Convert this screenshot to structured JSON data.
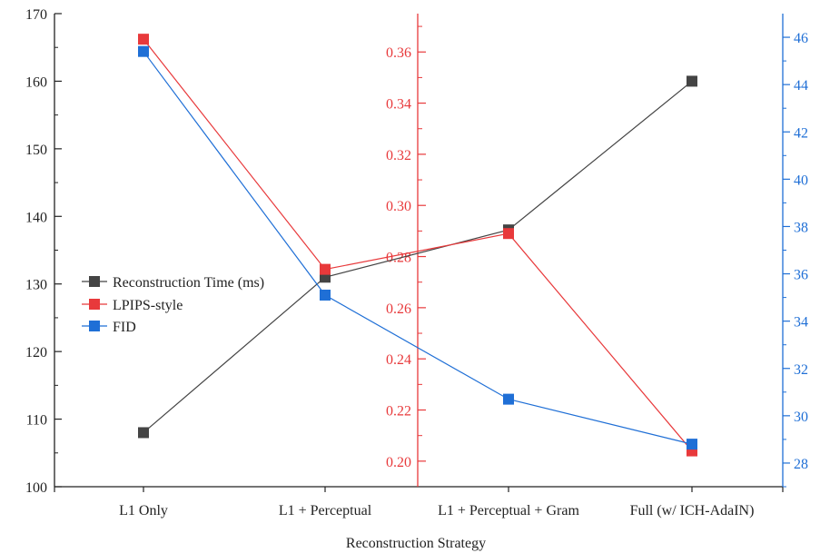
{
  "chart_data": {
    "type": "line",
    "xlabel": "Reconstruction Strategy",
    "categories": [
      "L1 Only",
      "L1 + Perceptual",
      "L1 + Perceptual + Gram",
      "Full (w/ ICH-AdaIN)"
    ],
    "axes": {
      "left": {
        "ylim": [
          100,
          170
        ],
        "ticks": [
          "100",
          "110",
          "120",
          "130",
          "140",
          "150",
          "160",
          "170"
        ]
      },
      "middle": {
        "ylim": [
          0.19,
          0.375
        ],
        "ticks": [
          "0.20",
          "0.22",
          "0.24",
          "0.26",
          "0.28",
          "0.30",
          "0.32",
          "0.34",
          "0.36"
        ],
        "color": "#e8393b"
      },
      "right": {
        "ylim": [
          27,
          47
        ],
        "ticks": [
          "28",
          "30",
          "32",
          "34",
          "36",
          "38",
          "40",
          "42",
          "44",
          "46"
        ],
        "color": "#1f6fd6"
      }
    },
    "series": [
      {
        "name": "Reconstruction Time (ms)",
        "axis": "left",
        "color": "#444444",
        "values": [
          108,
          131,
          138,
          160
        ]
      },
      {
        "name": "LPIPS-style",
        "axis": "middle",
        "color": "#e8393b",
        "values": [
          0.365,
          0.275,
          0.289,
          0.204
        ]
      },
      {
        "name": "FID",
        "axis": "right",
        "color": "#1f6fd6",
        "values": [
          45.4,
          35.1,
          30.7,
          28.8
        ]
      }
    ],
    "legend": "center-left",
    "grid": false
  }
}
